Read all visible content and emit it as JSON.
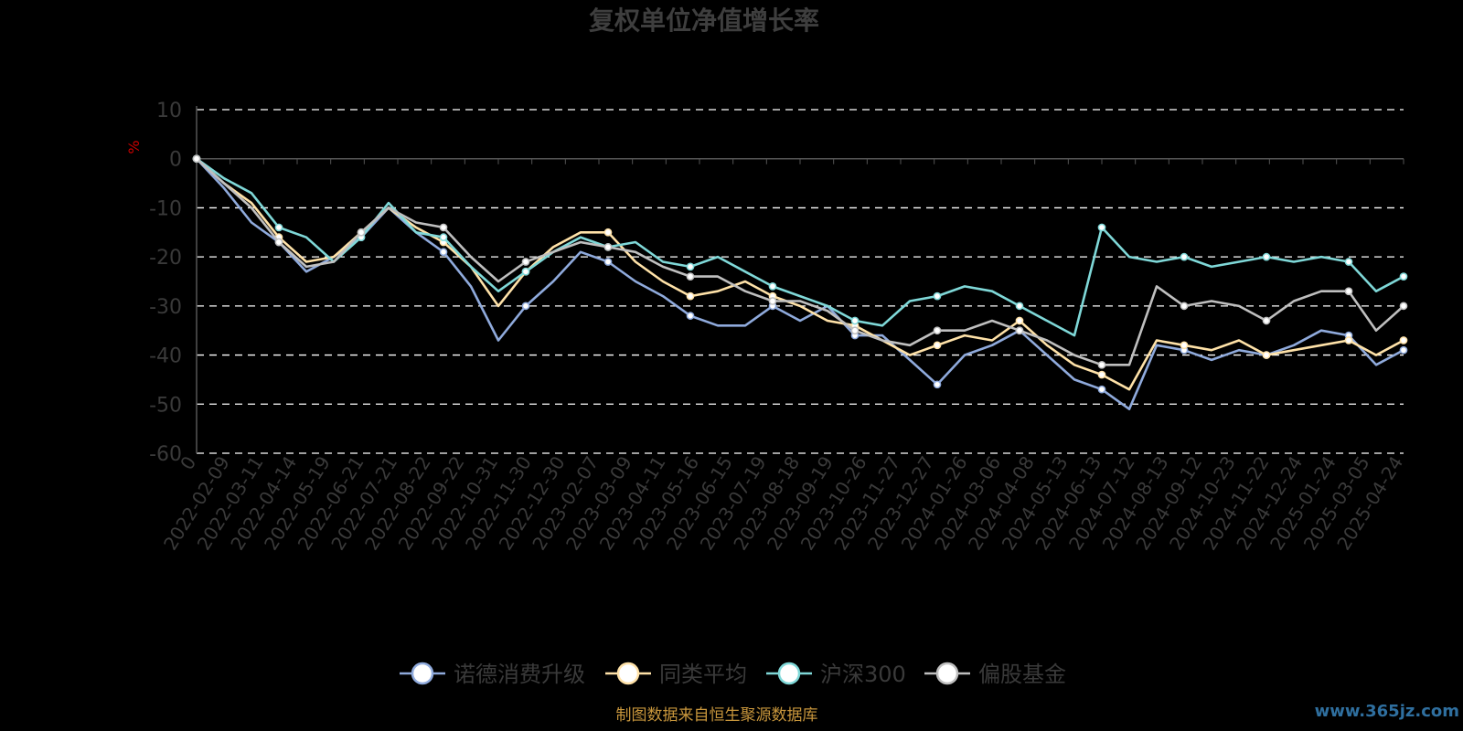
{
  "chart_data": {
    "type": "line",
    "title": "复权单位净值增长率",
    "ylabel": "%",
    "ylim": [
      -60,
      10
    ],
    "yticks": [
      10,
      0,
      -10,
      -20,
      -30,
      -40,
      -50,
      -60
    ],
    "grid": true,
    "legend_position": "bottom",
    "x_tick_labels": [
      "0",
      "2022-02-09",
      "2022-03-11",
      "2022-04-14",
      "2022-05-19",
      "2022-06-21",
      "2022-07-21",
      "2022-08-22",
      "2022-09-22",
      "2022-10-31",
      "2022-11-30",
      "2022-12-30",
      "2023-02-07",
      "2023-03-09",
      "2023-04-11",
      "2023-05-16",
      "2023-06-15",
      "2023-07-19",
      "2023-08-18",
      "2023-09-19",
      "2023-10-26",
      "2023-11-27",
      "2023-12-27",
      "2024-01-26",
      "2024-03-06",
      "2024-04-08",
      "2024-05-13",
      "2024-06-13",
      "2024-07-12",
      "2024-08-13",
      "2024-09-12",
      "2024-10-23",
      "2024-11-22",
      "2024-12-24",
      "2025-01-24",
      "2025-03-05",
      "2025-04-24"
    ],
    "series": [
      {
        "name": "诺德消费升级",
        "color": "#8faadc",
        "values": [
          0,
          -6,
          -13,
          -17,
          -23,
          -20,
          -16,
          -10,
          -15,
          -19,
          -26,
          -37,
          -30,
          -25,
          -19,
          -21,
          -25,
          -28,
          -32,
          -34,
          -34,
          -30,
          -33,
          -30,
          -36,
          -36,
          -41,
          -46,
          -40,
          -38,
          -35,
          -40,
          -45,
          -47,
          -51,
          -38,
          -39,
          -41,
          -39,
          -40,
          -38,
          -35,
          -36,
          -42,
          -39
        ]
      },
      {
        "name": "同类平均",
        "color": "#ffe2a8",
        "values": [
          0,
          -5,
          -9,
          -16,
          -21,
          -20,
          -15,
          -10,
          -14,
          -17,
          -22,
          -30,
          -23,
          -18,
          -15,
          -15,
          -21,
          -25,
          -28,
          -27,
          -25,
          -28,
          -30,
          -33,
          -34,
          -37,
          -40,
          -38,
          -36,
          -37,
          -33,
          -38,
          -42,
          -44,
          -47,
          -37,
          -38,
          -39,
          -37,
          -40,
          -39,
          -38,
          -37,
          -40,
          -37
        ]
      },
      {
        "name": "沪深300",
        "color": "#7fd8d8",
        "values": [
          0,
          -4,
          -7,
          -14,
          -16,
          -21,
          -16,
          -9,
          -15,
          -16,
          -22,
          -27,
          -23,
          -19,
          -16,
          -18,
          -17,
          -21,
          -22,
          -20,
          -23,
          -26,
          -28,
          -30,
          -33,
          -34,
          -29,
          -28,
          -26,
          -27,
          -30,
          -33,
          -36,
          -14,
          -20,
          -21,
          -20,
          -22,
          -21,
          -20,
          -21,
          -20,
          -21,
          -27,
          -24
        ]
      },
      {
        "name": "偏股基金",
        "color": "#bfbfbf",
        "values": [
          0,
          -5,
          -10,
          -17,
          -22,
          -21,
          -15,
          -10,
          -13,
          -14,
          -20,
          -25,
          -21,
          -19,
          -17,
          -18,
          -19,
          -22,
          -24,
          -24,
          -27,
          -29,
          -29,
          -31,
          -35,
          -37,
          -38,
          -35,
          -35,
          -33,
          -35,
          -37,
          -40,
          -42,
          -42,
          -26,
          -30,
          -29,
          -30,
          -33,
          -29,
          -27,
          -27,
          -35,
          -30
        ]
      }
    ]
  },
  "footer": "制图数据来自恒生聚源数据库",
  "watermark": "www.365jz.com"
}
